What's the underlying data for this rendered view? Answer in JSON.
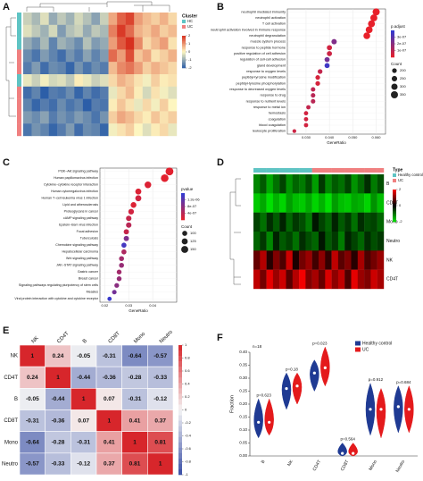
{
  "chart_data": [
    {
      "type": "heatmap",
      "panel_label": "A",
      "legend_title": "Cluster",
      "groups": [
        "HC",
        "UC"
      ],
      "group_colors": [
        "#5fc4c4",
        "#f08080"
      ],
      "row_groups": [
        0,
        0,
        0,
        1,
        1,
        0,
        1,
        1,
        1,
        1
      ],
      "colors": [
        "#2c5ea8",
        "#fdf6c0",
        "#d7301f"
      ],
      "zlim": [
        -2,
        2
      ],
      "zticks": [
        -2,
        -1,
        0,
        1,
        2
      ],
      "values": [
        [
          -0.5,
          -0.8,
          -0.3,
          -1.0,
          -0.6,
          -0.9,
          -0.4,
          -0.7,
          -1.1,
          -0.5,
          0.8,
          1.5,
          1.8,
          0.9,
          0.6,
          0.4,
          0.7,
          0.3
        ],
        [
          -0.3,
          -0.6,
          -0.9,
          -0.4,
          -1.2,
          -0.7,
          -0.5,
          -1.0,
          -0.6,
          -0.8,
          1.2,
          1.9,
          1.4,
          0.7,
          0.5,
          0.8,
          0.4,
          0.6
        ],
        [
          -1.0,
          -1.3,
          -0.8,
          -1.5,
          -0.9,
          -1.1,
          -1.4,
          -0.7,
          -1.2,
          -1.0,
          0.9,
          1.6,
          2.0,
          1.1,
          0.3,
          0.6,
          0.9,
          0.2
        ],
        [
          -1.4,
          -1.7,
          -1.2,
          -1.5,
          -1.8,
          -1.3,
          -1.6,
          -1.1,
          -1.5,
          -1.2,
          1.4,
          0.9,
          1.7,
          0.5,
          0.8,
          0.2,
          0.4,
          0.7
        ],
        [
          -1.6,
          -1.2,
          -1.8,
          -1.4,
          -1.5,
          -1.9,
          -1.3,
          -1.7,
          -1.4,
          -1.6,
          0.6,
          1.1,
          1.3,
          0.9,
          0.4,
          0.7,
          0.5,
          0.3
        ],
        [
          -0.2,
          -0.5,
          -0.1,
          -0.4,
          -0.3,
          -0.6,
          0.1,
          -0.2,
          -0.5,
          -0.3,
          0.3,
          0.7,
          0.5,
          0.2,
          -0.1,
          0.4,
          0.1,
          0.2
        ],
        [
          -1.8,
          -1.5,
          -2.0,
          -1.6,
          -1.7,
          -1.4,
          -1.9,
          -1.5,
          -1.8,
          -1.6,
          -0.2,
          0.3,
          0.6,
          0.1,
          -0.4,
          0.2,
          -0.1,
          -0.3
        ],
        [
          -1.5,
          -1.9,
          -1.6,
          -1.8,
          -1.4,
          -1.7,
          -1.5,
          -2.0,
          -1.6,
          -1.7,
          0.1,
          0.5,
          0.2,
          -0.2,
          0.3,
          -0.1,
          0.4,
          0.0
        ],
        [
          -1.2,
          -1.4,
          -1.1,
          -1.6,
          -1.3,
          -1.5,
          -1.2,
          -1.4,
          -1.7,
          -1.3,
          0.4,
          0.8,
          0.6,
          0.3,
          0.1,
          0.5,
          0.2,
          0.4
        ],
        [
          -1.7,
          -1.3,
          -1.5,
          -1.9,
          -1.6,
          -1.2,
          -1.8,
          -1.4,
          -1.5,
          -1.9,
          -0.1,
          0.2,
          0.4,
          0.0,
          -0.3,
          0.1,
          0.3,
          -0.2
        ]
      ]
    },
    {
      "type": "dot",
      "panel_label": "B",
      "categories": [
        "neutrophil mediated immunity",
        "neutrophil activation",
        "T cell activation",
        "neutrophil activation involved in immune response",
        "neutrophil degranulation",
        "muscle system process",
        "response to peptide hormone",
        "positive regulation of cell adhesion",
        "regulation of cell-cell adhesion",
        "gland development",
        "response to oxygen levels",
        "peptidyl-tyrosine modification",
        "peptidyl-tyrosine phosphorylation",
        "response to decreased oxygen levels",
        "response to drug",
        "response to nutrient levels",
        "response to metal ion",
        "hemostasis",
        "coagulation",
        "blood coagulation",
        "leukocyte proliferation"
      ],
      "values": [
        0.06,
        0.059,
        0.058,
        0.057,
        0.056,
        0.042,
        0.04,
        0.04,
        0.039,
        0.039,
        0.036,
        0.035,
        0.035,
        0.033,
        0.033,
        0.033,
        0.031,
        0.03,
        0.03,
        0.03,
        0.025
      ],
      "counts": [
        350,
        345,
        340,
        335,
        330,
        240,
        230,
        230,
        225,
        225,
        205,
        200,
        200,
        190,
        190,
        190,
        180,
        175,
        175,
        175,
        145
      ],
      "padj": [
        1e-09,
        1e-09,
        2e-09,
        1e-09,
        1e-09,
        2.2e-07,
        5e-08,
        6e-08,
        2.5e-07,
        3.6e-07,
        8e-08,
        4e-08,
        4e-08,
        9e-08,
        1e-07,
        1e-07,
        8e-08,
        5e-08,
        5e-08,
        5e-08,
        6e-08
      ],
      "xlim": [
        0.022,
        0.064
      ],
      "xticks": [
        {
          "value": 0.03,
          "label": "0.030"
        },
        {
          "value": 0.04,
          "label": "0.040"
        },
        {
          "value": 0.05,
          "label": "0.050"
        },
        {
          "value": 0.06,
          "label": "0.060"
        }
      ],
      "xlabel": "GeneRatio",
      "color_title": "p.adjust",
      "colors": [
        "#e8202a",
        "#2c3bd6"
      ],
      "clim": [
        0,
        4e-07
      ],
      "cticks": [
        {
          "value": 1e-07,
          "label": "1e-07"
        },
        {
          "value": 2e-07,
          "label": "2e-07"
        },
        {
          "value": 3e-07,
          "label": "3e-07"
        }
      ],
      "size_title": "Count",
      "size_ticks": [
        200,
        250,
        300,
        350
      ]
    },
    {
      "type": "dot",
      "panel_label": "C",
      "categories": [
        "PI3K−Akt signaling pathway",
        "Human papillomavirus infection",
        "Cytokine−cytokine receptor interaction",
        "Human cytomegalovirus infection",
        "Human T−cell leukemia virus 1 infection",
        "Lipid and atherosclerosis",
        "Proteoglycans in cancer",
        "cAMP signaling pathway",
        "Epstein−Barr virus infection",
        "Focal adhesion",
        "Tuberculosis",
        "Chemokine signaling pathway",
        "Hepatocellular carcinoma",
        "Wnt signaling pathway",
        "JAK−STAT signaling pathway",
        "Gastric cancer",
        "Breast cancer",
        "Signaling pathways regulating pluripotency of stem cells",
        "Measles",
        "Viral protein interaction with cytokine and cytokine receptor"
      ],
      "values": [
        0.047,
        0.045,
        0.038,
        0.034,
        0.034,
        0.032,
        0.031,
        0.03,
        0.03,
        0.029,
        0.029,
        0.028,
        0.028,
        0.027,
        0.027,
        0.026,
        0.026,
        0.025,
        0.024,
        0.022
      ],
      "counts": [
        170,
        165,
        140,
        125,
        125,
        118,
        115,
        110,
        110,
        105,
        105,
        100,
        100,
        98,
        98,
        95,
        95,
        92,
        88,
        80
      ],
      "padj": [
        5e-08,
        5e-08,
        1e-07,
        1e-07,
        2e-07,
        1e-07,
        2e-07,
        3e-07,
        4e-07,
        3e-07,
        9e-07,
        1.4e-06,
        5e-07,
        6e-07,
        7e-07,
        6e-07,
        7e-07,
        8e-07,
        1e-06,
        1.5e-06
      ],
      "xlim": [
        0.018,
        0.05
      ],
      "xticks": [
        0.02,
        0.03,
        0.04
      ],
      "xlabel": "GeneRatio",
      "color_title": "pvalue",
      "colors": [
        "#e8202a",
        "#2c3bd6"
      ],
      "clim": [
        0,
        1.6e-06
      ],
      "cticks": [
        {
          "value": 4e-07,
          "label": "4e-07"
        },
        {
          "value": 8e-07,
          "label": "8e-07"
        },
        {
          "value": 1.2e-06,
          "label": "1.2e-06"
        }
      ],
      "size_title": "Count",
      "size_ticks": [
        100,
        125,
        150
      ]
    },
    {
      "type": "heatmap",
      "panel_label": "D",
      "legend_title": "Type",
      "groups": [
        "Healthy control",
        "UC"
      ],
      "group_colors": [
        "#5fc4c4",
        "#f08080"
      ],
      "col_groups": [
        0,
        0,
        0,
        0,
        0,
        0,
        0,
        0,
        0,
        1,
        1,
        1,
        1,
        1,
        1,
        1,
        1,
        1,
        1,
        1
      ],
      "rows": [
        "B",
        "CD8T",
        "Mono",
        "Neutro",
        "NK",
        "CD4T"
      ],
      "colors": [
        "#00e000",
        "#000000",
        "#ff0000"
      ],
      "zlim": [
        -2,
        2
      ],
      "zticks": [
        -2,
        0,
        2
      ],
      "values": [
        [
          -1.2,
          -0.8,
          -1.5,
          -1.0,
          -0.6,
          -1.3,
          -0.9,
          -1.1,
          -0.7,
          -1.4,
          -0.5,
          -1.2,
          -0.8,
          -1.0,
          -0.6,
          -1.3,
          -0.9,
          -0.4,
          -1.1,
          -0.7
        ],
        [
          -1.8,
          -1.5,
          -2.0,
          -1.6,
          -1.9,
          -1.4,
          -1.7,
          -1.8,
          -1.5,
          -1.9,
          -1.6,
          -2.0,
          -1.4,
          -1.7,
          -1.8,
          -1.5,
          -1.6,
          -1.9,
          -1.3,
          -1.7
        ],
        [
          -0.6,
          -1.0,
          -0.4,
          -0.8,
          -0.3,
          -0.9,
          -0.5,
          -0.7,
          -1.1,
          -0.2,
          -0.6,
          -0.9,
          -0.3,
          -0.8,
          -0.5,
          -1.0,
          -0.4,
          -0.7,
          -0.6,
          -0.9
        ],
        [
          -0.9,
          -0.5,
          -1.2,
          -0.3,
          -0.8,
          -0.6,
          -1.0,
          -0.4,
          -0.7,
          -0.9,
          -0.2,
          -0.8,
          -0.5,
          -1.1,
          -0.3,
          -0.6,
          -0.9,
          -0.4,
          -0.7,
          -0.5
        ],
        [
          0.8,
          1.4,
          0.3,
          1.0,
          0.6,
          1.6,
          0.2,
          0.9,
          1.2,
          0.5,
          1.1,
          0.4,
          1.5,
          0.7,
          1.0,
          0.3,
          1.3,
          0.6,
          0.9,
          1.2
        ],
        [
          1.5,
          0.9,
          1.8,
          1.2,
          1.6,
          0.7,
          1.4,
          1.9,
          1.0,
          1.3,
          0.8,
          1.7,
          1.1,
          1.5,
          0.6,
          1.8,
          1.2,
          1.0,
          1.6,
          1.3
        ]
      ]
    },
    {
      "type": "corr",
      "panel_label": "E",
      "labels": [
        "NK",
        "CD4T",
        "B",
        "CD8T",
        "Mono",
        "Neutro"
      ],
      "values": [
        [
          1,
          0.24,
          -0.05,
          -0.31,
          -0.64,
          -0.57
        ],
        [
          0.24,
          1,
          -0.44,
          -0.36,
          -0.28,
          -0.33
        ],
        [
          -0.05,
          -0.44,
          1,
          0.07,
          -0.31,
          -0.12
        ],
        [
          -0.31,
          -0.36,
          0.07,
          1,
          0.41,
          0.37
        ],
        [
          -0.64,
          -0.28,
          -0.31,
          0.41,
          1,
          0.81
        ],
        [
          -0.57,
          -0.33,
          -0.12,
          0.37,
          0.81,
          1
        ]
      ],
      "colors": [
        "#3a4fa6",
        "#f5f5f5",
        "#d7262b"
      ],
      "zlim": [
        -1,
        1
      ],
      "zticks": [
        -1,
        -0.8,
        -0.6,
        -0.4,
        -0.2,
        0,
        0.2,
        0.4,
        0.6,
        0.8,
        1
      ]
    },
    {
      "type": "violin",
      "panel_label": "F",
      "categories": [
        "B",
        "NK",
        "CD4T",
        "CD8T",
        "Mono",
        "Neutro"
      ],
      "ylabel": "Fraction",
      "n_label": "n=18",
      "p_labels": [
        "p=0.623",
        "p=0.18",
        "p=0.023",
        "p=0.564",
        "p=0.912",
        "p=0.684"
      ],
      "ylim": [
        0,
        0.4
      ],
      "yticks": [
        {
          "value": 0,
          "label": "0.00"
        },
        {
          "value": 0.05,
          "label": "0.05"
        },
        {
          "value": 0.1,
          "label": "0.10"
        },
        {
          "value": 0.15,
          "label": "0.15"
        },
        {
          "value": 0.2,
          "label": "0.20"
        },
        {
          "value": 0.25,
          "label": "0.25"
        },
        {
          "value": 0.3,
          "label": "0.30"
        },
        {
          "value": 0.35,
          "label": "0.35"
        },
        {
          "value": 0.4,
          "label": "0.40"
        }
      ],
      "series": [
        {
          "name": "Healthy control",
          "color": "#1f3a93",
          "min": [
            0.07,
            0.18,
            0.25,
            0.0,
            0.08,
            0.09
          ],
          "median": [
            0.13,
            0.26,
            0.32,
            0.01,
            0.18,
            0.19
          ],
          "max": [
            0.22,
            0.32,
            0.37,
            0.05,
            0.28,
            0.27
          ]
        },
        {
          "name": "UC",
          "color": "#e41a1c",
          "min": [
            0.08,
            0.2,
            0.27,
            0.0,
            0.07,
            0.09
          ],
          "median": [
            0.13,
            0.27,
            0.34,
            0.01,
            0.18,
            0.18
          ],
          "max": [
            0.22,
            0.32,
            0.42,
            0.05,
            0.26,
            0.27
          ]
        }
      ]
    }
  ]
}
